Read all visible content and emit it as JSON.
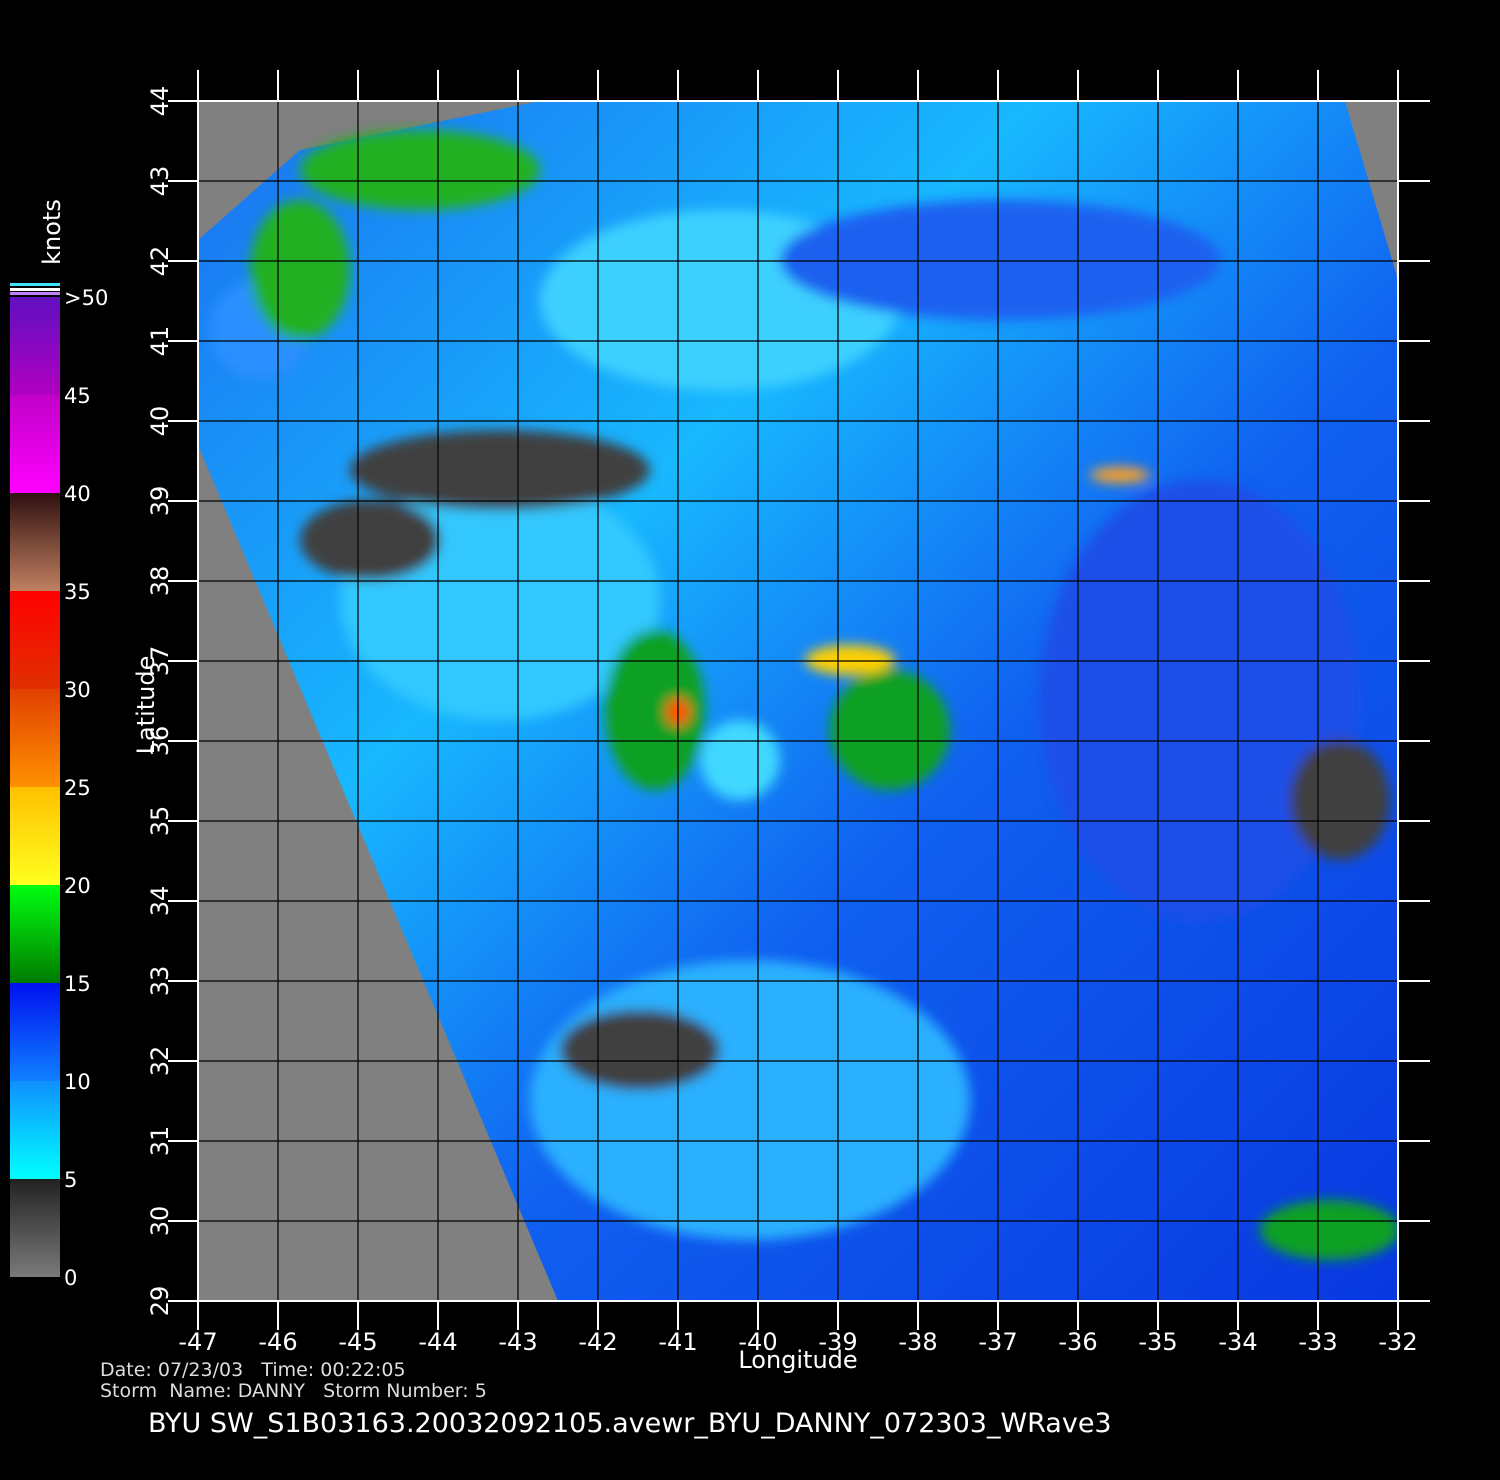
{
  "chart_data": {
    "type": "map",
    "xlabel": "Longitude",
    "ylabel": "Latitude",
    "xlim": [
      -47,
      -32
    ],
    "ylim": [
      29,
      44
    ],
    "xticks": [
      -47,
      -46,
      -45,
      -44,
      -43,
      -42,
      -41,
      -40,
      -39,
      -38,
      -37,
      -36,
      -35,
      -34,
      -33,
      -32
    ],
    "yticks": [
      29,
      30,
      31,
      32,
      33,
      34,
      35,
      36,
      37,
      38,
      39,
      40,
      41,
      42,
      43,
      44
    ],
    "grid": true,
    "colorbar": {
      "title": "knots",
      "lim": [
        0,
        50
      ],
      "ticks": [
        0,
        5,
        10,
        15,
        20,
        25,
        30,
        35,
        40,
        45,
        {
          "value": 50,
          "label": ">50"
        }
      ],
      "colors": [
        [
          "#7a7a7a",
          "#222222"
        ],
        [
          "#00ffff",
          "#1090ff"
        ],
        [
          "#1080ff",
          "#0010f0"
        ],
        [
          "#007a00",
          "#00ff10"
        ],
        [
          "#ffff20",
          "#ffc000"
        ],
        [
          "#ff9000",
          "#e04000"
        ],
        [
          "#e03000",
          "#ff0000"
        ],
        [
          "#c08060",
          "#301010"
        ],
        [
          "#ff00ff",
          "#c000c8"
        ],
        [
          "#b000c0",
          "#6010c0"
        ]
      ]
    },
    "footer": {
      "line1": "Date: 07/23/03   Time: 00:22:05",
      "line2": "Storm  Name: DANNY   Storm Number: 5",
      "title": "BYU  SW_S1B03163.20032092105.avewr_BYU_DANNY_072303_WRave3"
    }
  }
}
